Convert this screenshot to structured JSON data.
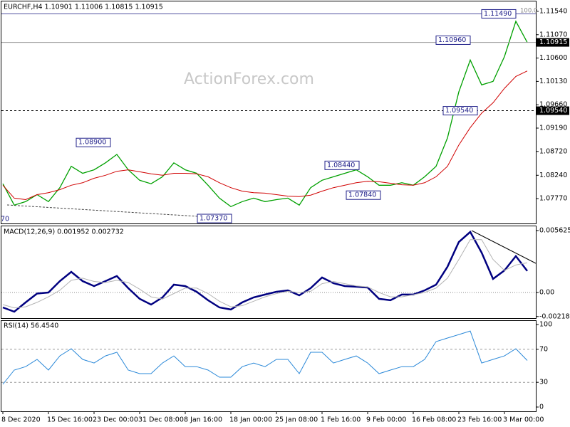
{
  "chart_data": [
    {
      "type": "line",
      "title": "EURCHF,H4  1.10901 1.11006 1.10815 1.10915",
      "watermark": "ActionForex.com",
      "categories": [
        "8 Dec 2020",
        null,
        null,
        null,
        "15 Dec 16:00",
        null,
        null,
        null,
        "23 Dec 00:00",
        null,
        null,
        null,
        "31 Dec 08:00",
        null,
        null,
        null,
        "8 Jan 16:00",
        null,
        null,
        null,
        "18 Jan 00:00",
        null,
        null,
        null,
        "25 Jan 08:00",
        null,
        null,
        null,
        "1 Feb 16:00",
        null,
        null,
        null,
        "9 Feb 00:00",
        null,
        null,
        null,
        "16 Feb 08:00",
        null,
        null,
        null,
        "23 Feb 16:00",
        null,
        null,
        null,
        "3 Mar 00:00",
        null,
        null
      ],
      "series": [
        {
          "color": "#00a000",
          "values": [
            1.0807,
            1.0764,
            1.0771,
            1.0785,
            1.0771,
            1.0799,
            1.0842,
            1.0828,
            1.0835,
            1.0849,
            1.0866,
            1.0835,
            1.0814,
            1.0807,
            1.0821,
            1.0849,
            1.0835,
            1.0828,
            1.0804,
            1.0778,
            1.0761,
            1.0771,
            1.0778,
            1.0771,
            1.0775,
            1.0778,
            1.0764,
            1.0799,
            1.0814,
            1.0821,
            1.0828,
            1.0835,
            1.0821,
            1.0804,
            1.0804,
            1.0809,
            1.0804,
            1.0821,
            1.0842,
            1.0899,
            1.0992,
            1.1056,
            1.1006,
            1.1013,
            1.1063,
            1.1134,
            1.10915
          ]
        },
        {
          "color": "#d00000",
          "values": [
            1.0804,
            1.0778,
            1.0775,
            1.0785,
            1.0789,
            1.0795,
            1.0804,
            1.0809,
            1.0818,
            1.0824,
            1.0832,
            1.0835,
            1.0831,
            1.0827,
            1.0824,
            1.0828,
            1.0828,
            1.0827,
            1.0821,
            1.0809,
            1.0799,
            1.0792,
            1.0789,
            1.0788,
            1.0785,
            1.0782,
            1.0781,
            1.0784,
            1.0792,
            1.0799,
            1.0804,
            1.0809,
            1.0812,
            1.0811,
            1.0808,
            1.0805,
            1.0804,
            1.0809,
            1.0821,
            1.0842,
            1.0885,
            1.092,
            1.0949,
            1.097,
            1.0999,
            1.1023,
            1.1034
          ]
        }
      ],
      "ylim": [
        1.0727,
        1.1174
      ],
      "yticks": [
        {
          "value": 1.1154,
          "label": "1.11540"
        },
        {
          "value": 1.1107,
          "label": "1.11070"
        },
        {
          "value": 1.106,
          "label": "1.10600"
        },
        {
          "value": 1.1013,
          "label": "1.10130"
        },
        {
          "value": 1.0966,
          "label": "1.09660"
        },
        {
          "value": 1.0919,
          "label": "1.09190"
        },
        {
          "value": 1.0872,
          "label": "1.08720"
        },
        {
          "value": 1.0824,
          "label": "1.08240"
        },
        {
          "value": 1.0777,
          "label": "1.07770"
        }
      ],
      "annotations": [
        {
          "value": 1.089,
          "label": "1.08900"
        },
        {
          "value": 1.0737,
          "label": "1.07370"
        },
        {
          "value": 1.0844,
          "label": "1.08440"
        },
        {
          "value": 1.0784,
          "label": "1.07840"
        },
        {
          "value": 1.1096,
          "label": "1.10960"
        },
        {
          "value": 1.1149,
          "label": "1.11490"
        },
        {
          "value": 1.0954,
          "label": "1.09540"
        }
      ],
      "cut_label": "70",
      "current_price": 1.10915,
      "level_label": {
        "value": 1.0954,
        "label": "1.09540"
      },
      "fib_label": {
        "value": 100,
        "label": "100.0"
      }
    },
    {
      "type": "line",
      "title": "MACD(12,26,9) 0.001952 0.002732",
      "series": [
        {
          "color": "#000080",
          "values": [
            -0.00136,
            -0.00175,
            -0.0009,
            -0.0001,
            0.0,
            0.00103,
            0.00187,
            0.00103,
            0.00058,
            0.00103,
            0.00149,
            0.00039,
            -0.00058,
            -0.0011,
            -0.00045,
            0.00071,
            0.00058,
            6e-05,
            -0.00071,
            -0.00136,
            -0.00155,
            -0.0009,
            -0.00045,
            -0.00019,
            6e-05,
            0.00019,
            -0.00026,
            0.00039,
            0.00136,
            0.00084,
            0.00058,
            0.00052,
            0.00045,
            -0.00058,
            -0.00071,
            -0.00019,
            -0.00019,
            0.00019,
            0.00071,
            0.00233,
            0.00459,
            0.0055,
            0.00362,
            0.00123,
            0.002,
            0.0033,
            0.00195
          ]
        },
        {
          "color": "#b4b4b4",
          "values": [
            -0.0011,
            -0.0014,
            -0.0013,
            -0.0009,
            -0.0004,
            0.0002,
            0.0011,
            0.0013,
            0.001,
            0.0009,
            0.0011,
            0.0009,
            0.0003,
            -0.0004,
            -0.0006,
            -0.0001,
            0.0004,
            0.0004,
            -0.0001,
            -0.0008,
            -0.0013,
            -0.0012,
            -0.0008,
            -0.0004,
            -0.0001,
            0.0001,
            0.0,
            0.0001,
            0.0008,
            0.001,
            0.0008,
            0.0006,
            0.0005,
            0.0,
            -0.0004,
            -0.0004,
            -0.0002,
            0.0,
            0.0004,
            0.0013,
            0.003,
            0.0048,
            0.0048,
            0.003,
            0.002,
            0.0025,
            0.0027
          ]
        }
      ],
      "ylim": [
        -0.00233,
        0.00601
      ],
      "yticks": [
        0.005625,
        {
          "value": 0,
          "label": "0.00"
        },
        -0.002185
      ]
    },
    {
      "type": "line",
      "title": "RSI(14) 56.4540",
      "series": [
        {
          "color": "#2a88d8",
          "values": [
            27.6,
            44.8,
            49,
            57.8,
            44.8,
            62,
            70.7,
            57.8,
            53.4,
            62,
            66.4,
            44.8,
            40.5,
            40.5,
            53.4,
            62,
            49,
            49,
            44.8,
            36.2,
            36.2,
            49,
            53.4,
            49,
            57.8,
            57.8,
            40.5,
            66.4,
            66.4,
            53.4,
            57.8,
            62,
            53.4,
            40.5,
            44.8,
            49,
            49,
            57.8,
            79.3,
            83.6,
            87.9,
            92.2,
            53.4,
            57.8,
            62,
            70.7,
            56.454
          ]
        }
      ],
      "ylim": [
        -5.2,
        105.2
      ],
      "yticks": [
        100,
        70,
        30,
        0
      ],
      "dashed_levels": [
        70,
        30
      ]
    }
  ]
}
